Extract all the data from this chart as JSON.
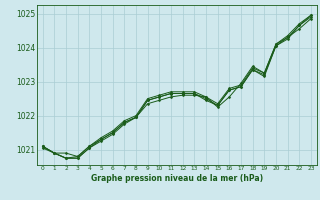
{
  "title": "Graphe pression niveau de la mer (hPa)",
  "background_color": "#cfe8ed",
  "grid_color": "#aacdd4",
  "line_color": "#1a5c1a",
  "ylim": [
    1020.55,
    1025.25
  ],
  "xlim": [
    -0.5,
    23.5
  ],
  "yticks": [
    1021,
    1022,
    1023,
    1024,
    1025
  ],
  "xticks": [
    0,
    1,
    2,
    3,
    4,
    5,
    6,
    7,
    8,
    9,
    10,
    11,
    12,
    13,
    14,
    15,
    16,
    17,
    18,
    19,
    20,
    21,
    22,
    23
  ],
  "series": [
    [
      1021.1,
      1020.9,
      1020.9,
      1020.8,
      1021.1,
      1021.3,
      1021.5,
      1021.8,
      1021.95,
      1022.45,
      1022.55,
      1022.65,
      1022.65,
      1022.65,
      1022.45,
      1022.3,
      1022.75,
      1022.85,
      1023.35,
      1023.15,
      1024.05,
      1024.25,
      1024.65,
      1024.95
    ],
    [
      1021.1,
      1020.9,
      1020.75,
      1020.75,
      1021.05,
      1021.25,
      1021.45,
      1021.75,
      1021.95,
      1022.35,
      1022.45,
      1022.55,
      1022.6,
      1022.6,
      1022.55,
      1022.25,
      1022.55,
      1022.95,
      1023.45,
      1023.25,
      1024.1,
      1024.3,
      1024.55,
      1024.85
    ],
    [
      1021.1,
      1020.9,
      1020.75,
      1020.75,
      1021.05,
      1021.3,
      1021.5,
      1021.8,
      1021.95,
      1022.45,
      1022.55,
      1022.65,
      1022.65,
      1022.65,
      1022.5,
      1022.3,
      1022.75,
      1022.85,
      1023.35,
      1023.2,
      1024.05,
      1024.3,
      1024.65,
      1024.9
    ],
    [
      1021.05,
      1020.9,
      1020.75,
      1020.8,
      1021.1,
      1021.35,
      1021.55,
      1021.85,
      1022.0,
      1022.5,
      1022.6,
      1022.7,
      1022.7,
      1022.7,
      1022.55,
      1022.35,
      1022.8,
      1022.9,
      1023.4,
      1023.25,
      1024.1,
      1024.35,
      1024.7,
      1024.95
    ]
  ]
}
